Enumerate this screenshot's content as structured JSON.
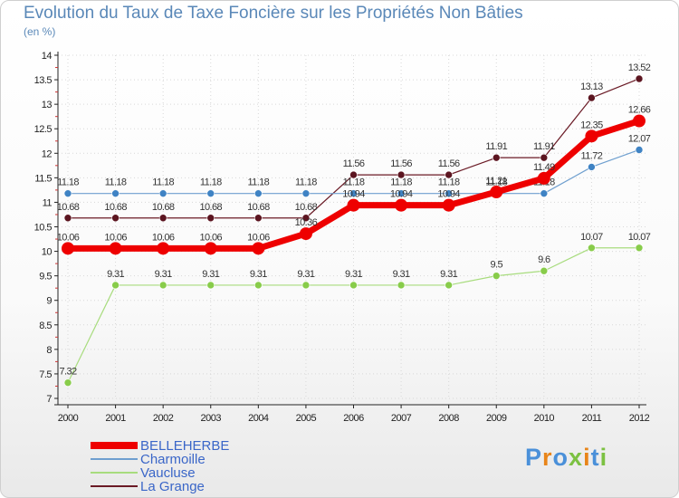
{
  "chart_data": {
    "type": "line",
    "title": "Evolution du Taux de Taxe Foncière sur les Propriétés Non Bâties",
    "ylabel": "(en %)",
    "categories": [
      "2000",
      "2001",
      "2002",
      "2003",
      "2004",
      "2005",
      "2006",
      "2007",
      "2008",
      "2009",
      "2010",
      "2011",
      "2012"
    ],
    "ylim": [
      7,
      14
    ],
    "yticks": [
      "7",
      "7.5",
      "8",
      "8.5",
      "9",
      "9.5",
      "10",
      "10.5",
      "11",
      "11.5",
      "12",
      "12.5",
      "13",
      "13.5",
      "14"
    ],
    "series": [
      {
        "name": "La Grange",
        "color": "#6a1a25",
        "width": 1.2,
        "marker": 4,
        "markerColor": "#5c1520",
        "values": [
          10.68,
          10.68,
          10.68,
          10.68,
          10.68,
          10.68,
          11.56,
          11.56,
          11.56,
          11.91,
          11.91,
          13.13,
          13.52
        ],
        "labels": [
          "10.68",
          "10.68",
          "10.68",
          "10.68",
          "10.68",
          "10.68",
          "11.56",
          "11.56",
          "11.56",
          "11.91",
          "11.91",
          "13.13",
          "13.52"
        ]
      },
      {
        "name": "Charmoille",
        "color": "#6f9fcf",
        "width": 1.2,
        "marker": 4,
        "markerColor": "#3f83c4",
        "values": [
          11.18,
          11.18,
          11.18,
          11.18,
          11.18,
          11.18,
          11.18,
          11.18,
          11.18,
          11.18,
          11.18,
          11.72,
          12.07
        ],
        "labels": [
          "11.18",
          "11.18",
          "11.18",
          "11.18",
          "11.18",
          "11.18",
          "11.18",
          "11.18",
          "11.18",
          "11.18",
          "11.18",
          "11.72",
          "12.07"
        ]
      },
      {
        "name": "Vaucluse",
        "color": "#a8dc7e",
        "width": 1.2,
        "marker": 4,
        "markerColor": "#88cc4a",
        "values": [
          7.32,
          9.31,
          9.31,
          9.31,
          9.31,
          9.31,
          9.31,
          9.31,
          9.31,
          9.5,
          9.6,
          10.07,
          10.07
        ],
        "labels": [
          "7.32",
          "9.31",
          "9.31",
          "9.31",
          "9.31",
          "9.31",
          "9.31",
          "9.31",
          "9.31",
          "9.5",
          "9.6",
          "10.07",
          "10.07"
        ]
      },
      {
        "name": "BELLEHERBE",
        "color": "#ee0000",
        "width": 7,
        "marker": 7,
        "markerColor": "#ee0000",
        "values": [
          10.06,
          10.06,
          10.06,
          10.06,
          10.06,
          10.36,
          10.94,
          10.94,
          10.94,
          11.21,
          11.49,
          12.35,
          12.66
        ],
        "labels": [
          "10.06",
          "10.06",
          "10.06",
          "10.06",
          "10.06",
          "10.36",
          "10.94",
          "10.94",
          "10.94",
          "11.21",
          "11.49",
          "12.35",
          "12.66"
        ]
      }
    ],
    "legend": [
      "BELLEHERBE",
      "Charmoille",
      "Vaucluse",
      "La Grange"
    ]
  },
  "logo": {
    "text": "Proxiti"
  }
}
